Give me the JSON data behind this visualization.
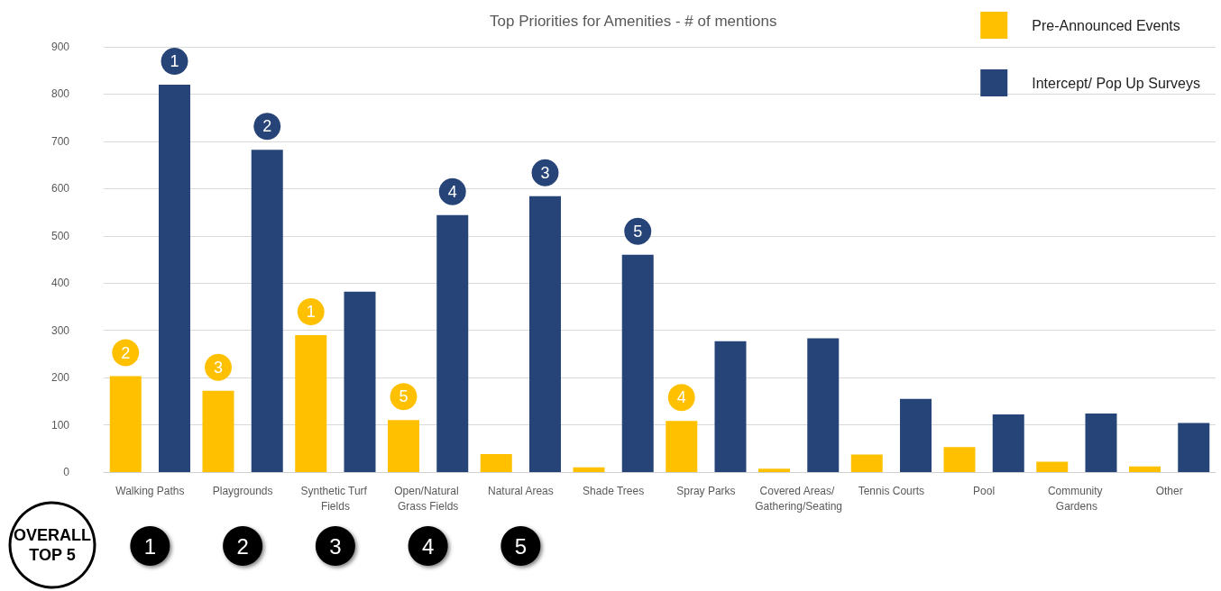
{
  "chart_data": {
    "type": "bar",
    "title": "Top Priorities for Amenities - # of mentions",
    "categories": [
      "Walking Paths",
      "Playgrounds",
      "Synthetic Turf Fields",
      "Open/Natural Grass Fields",
      "Natural Areas",
      "Shade Trees",
      "Spray Parks",
      "Covered Areas/ Gathering/Seating",
      "Tennis Courts",
      "Pool",
      "Community Gardens",
      "Other"
    ],
    "series": [
      {
        "name": "Pre-Announced Events",
        "color": "#ffc000",
        "values": [
          203,
          172,
          290,
          110,
          38,
          10,
          108,
          7,
          37,
          53,
          22,
          12
        ]
      },
      {
        "name": "Intercept/ Pop Up Surveys",
        "color": "#264478",
        "values": [
          820,
          682,
          382,
          544,
          584,
          460,
          277,
          283,
          155,
          122,
          124,
          104
        ]
      }
    ],
    "ylim": [
      0,
      900
    ],
    "yticks": [
      0,
      100,
      200,
      300,
      400,
      500,
      600,
      700,
      800,
      900
    ],
    "grid": "y",
    "legend": "top right",
    "annotations": [
      "2",
      "1",
      "3",
      "2",
      "1",
      "5",
      "4",
      "3",
      "5",
      "4",
      "OVERALL\nTOP 5",
      "1",
      "2",
      "3",
      "4",
      "5"
    ]
  }
}
